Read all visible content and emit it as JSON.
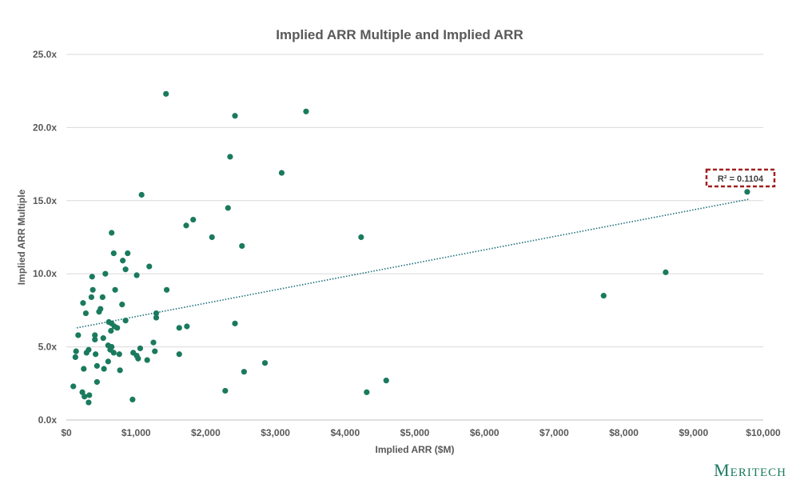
{
  "chart_data": {
    "type": "scatter",
    "title": "Implied ARR Multiple and Implied ARR",
    "xlabel": "Implied ARR ($M)",
    "ylabel": "Implied ARR Multiple",
    "xlim": [
      0,
      10000
    ],
    "ylim": [
      0,
      25
    ],
    "x_ticks": [
      0,
      1000,
      2000,
      3000,
      4000,
      5000,
      6000,
      7000,
      8000,
      9000,
      10000
    ],
    "x_tick_labels": [
      "$0",
      "$1,000",
      "$2,000",
      "$3,000",
      "$4,000",
      "$5,000",
      "$6,000",
      "$7,000",
      "$8,000",
      "$9,000",
      "$10,000"
    ],
    "y_ticks": [
      0,
      5,
      10,
      15,
      20,
      25
    ],
    "y_tick_labels": [
      "0.0x",
      "5.0x",
      "10.0x",
      "15.0x",
      "20.0x",
      "25.0x"
    ],
    "grid": "horizontal",
    "point_color": "#1a7a5e",
    "trendline": {
      "style": "dotted",
      "color": "#1a6f7a",
      "x": [
        150,
        9800
      ],
      "y": [
        6.3,
        15.1
      ],
      "r_squared_label": "R² = 0.1104",
      "label_border_color": "#a31f1f"
    },
    "points": [
      [
        1430,
        22.3
      ],
      [
        3440,
        21.1
      ],
      [
        2420,
        20.8
      ],
      [
        2350,
        18.0
      ],
      [
        3090,
        16.9
      ],
      [
        9770,
        15.6
      ],
      [
        1080,
        15.4
      ],
      [
        2320,
        14.5
      ],
      [
        1820,
        13.7
      ],
      [
        1720,
        13.3
      ],
      [
        650,
        12.8
      ],
      [
        2090,
        12.5
      ],
      [
        4230,
        12.5
      ],
      [
        2520,
        11.9
      ],
      [
        880,
        11.4
      ],
      [
        680,
        11.4
      ],
      [
        810,
        10.9
      ],
      [
        1190,
        10.5
      ],
      [
        850,
        10.3
      ],
      [
        560,
        10.0
      ],
      [
        1010,
        9.9
      ],
      [
        8600,
        10.1
      ],
      [
        370,
        9.8
      ],
      [
        380,
        8.9
      ],
      [
        700,
        8.9
      ],
      [
        1440,
        8.9
      ],
      [
        360,
        8.4
      ],
      [
        520,
        8.4
      ],
      [
        7710,
        8.5
      ],
      [
        240,
        8.0
      ],
      [
        800,
        7.9
      ],
      [
        490,
        7.6
      ],
      [
        470,
        7.4
      ],
      [
        280,
        7.3
      ],
      [
        1290,
        7.3
      ],
      [
        1290,
        7.0
      ],
      [
        850,
        6.8
      ],
      [
        610,
        6.7
      ],
      [
        650,
        6.6
      ],
      [
        690,
        6.4
      ],
      [
        730,
        6.3
      ],
      [
        2420,
        6.6
      ],
      [
        1620,
        6.3
      ],
      [
        1730,
        6.4
      ],
      [
        640,
        6.1
      ],
      [
        410,
        5.8
      ],
      [
        410,
        5.5
      ],
      [
        170,
        5.8
      ],
      [
        530,
        5.6
      ],
      [
        600,
        5.1
      ],
      [
        650,
        5.0
      ],
      [
        1250,
        5.3
      ],
      [
        1060,
        4.9
      ],
      [
        630,
        4.8
      ],
      [
        290,
        4.6
      ],
      [
        320,
        4.8
      ],
      [
        420,
        4.5
      ],
      [
        140,
        4.7
      ],
      [
        680,
        4.6
      ],
      [
        760,
        4.5
      ],
      [
        960,
        4.6
      ],
      [
        1010,
        4.4
      ],
      [
        1030,
        4.2
      ],
      [
        1160,
        4.1
      ],
      [
        1270,
        4.7
      ],
      [
        1620,
        4.5
      ],
      [
        130,
        4.3
      ],
      [
        600,
        4.0
      ],
      [
        440,
        3.7
      ],
      [
        540,
        3.5
      ],
      [
        250,
        3.5
      ],
      [
        770,
        3.4
      ],
      [
        2550,
        3.3
      ],
      [
        2850,
        3.9
      ],
      [
        440,
        2.6
      ],
      [
        4590,
        2.7
      ],
      [
        100,
        2.3
      ],
      [
        230,
        1.9
      ],
      [
        330,
        1.7
      ],
      [
        260,
        1.6
      ],
      [
        320,
        1.2
      ],
      [
        950,
        1.4
      ],
      [
        2280,
        2.0
      ],
      [
        4310,
        1.9
      ]
    ]
  },
  "brand": {
    "logo_text": "Meritech"
  }
}
